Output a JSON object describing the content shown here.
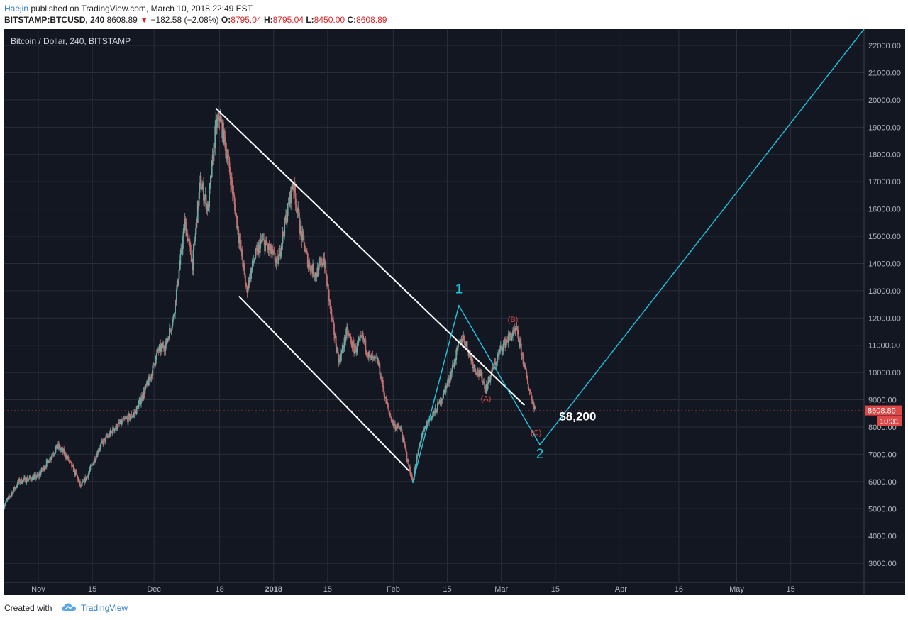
{
  "header": {
    "author": "Haejin",
    "published_text": "published on TradingView.com, March 10, 2018 22:49 EST",
    "symbol": "BITSTAMP:BTCUSD, 240",
    "last": "8608.89",
    "change_arrow": "▼",
    "change": "−182.58 (−2.08%)",
    "open_label": "O:",
    "open": "8795.04",
    "high_label": "H:",
    "high": "8795.04",
    "low_label": "L:",
    "low": "8450.00",
    "close_label": "C:",
    "close": "8608.89"
  },
  "chart_data": {
    "type": "candlestick",
    "title": "Bitcoin / Dollar, 240, BITSTAMP",
    "x_tick_labels": [
      "Nov",
      "15",
      "Dec",
      "18",
      "2018",
      "15",
      "Feb",
      "15",
      "Mar",
      "15",
      "Apr",
      "16",
      "May",
      "15"
    ],
    "x_tick_day_offsets": [
      0,
      14,
      30,
      47,
      61,
      75,
      92,
      106,
      120,
      134,
      151,
      166,
      181,
      195
    ],
    "y_ticks": [
      3000,
      4000,
      5000,
      6000,
      7000,
      8000,
      9000,
      10000,
      11000,
      12000,
      13000,
      14000,
      15000,
      16000,
      17000,
      18000,
      19000,
      20000,
      21000,
      22000
    ],
    "y_tick_labels": [
      "3000.00",
      "4000.00",
      "5000.00",
      "6000.00",
      "7000.00",
      "8000.00",
      "9000.00",
      "10000.00",
      "11000.00",
      "12000.00",
      "13000.00",
      "14000.00",
      "15000.00",
      "16000.00",
      "17000.00",
      "18000.00",
      "19000.00",
      "20000.00",
      "21000.00",
      "22000.00"
    ],
    "ylim": [
      2300,
      22600
    ],
    "xlim_days": [
      -9,
      214
    ],
    "price_path": [
      [
        -9,
        5100
      ],
      [
        -5,
        6000
      ],
      [
        0,
        6200
      ],
      [
        5,
        7300
      ],
      [
        7,
        7000
      ],
      [
        10,
        6200
      ],
      [
        11,
        5800
      ],
      [
        13,
        6300
      ],
      [
        16,
        7300
      ],
      [
        20,
        8000
      ],
      [
        25,
        8500
      ],
      [
        29,
        9800
      ],
      [
        31,
        10800
      ],
      [
        33,
        11000
      ],
      [
        35,
        12000
      ],
      [
        38,
        15500
      ],
      [
        40,
        14000
      ],
      [
        42,
        17000
      ],
      [
        44,
        16000
      ],
      [
        46,
        19000
      ],
      [
        47,
        19400
      ],
      [
        49,
        18000
      ],
      [
        51,
        16000
      ],
      [
        52,
        15000
      ],
      [
        54,
        13000
      ],
      [
        56,
        14200
      ],
      [
        58,
        14800
      ],
      [
        60,
        14500
      ],
      [
        62,
        14000
      ],
      [
        64,
        15500
      ],
      [
        66,
        17000
      ],
      [
        68,
        15200
      ],
      [
        70,
        14000
      ],
      [
        72,
        13600
      ],
      [
        74,
        14200
      ],
      [
        76,
        12000
      ],
      [
        78,
        10400
      ],
      [
        80,
        11500
      ],
      [
        82,
        10800
      ],
      [
        84,
        11300
      ],
      [
        86,
        10500
      ],
      [
        88,
        10400
      ],
      [
        90,
        9000
      ],
      [
        91,
        8500
      ],
      [
        92,
        8100
      ],
      [
        94,
        7900
      ],
      [
        96,
        6600
      ],
      [
        97,
        6000
      ],
      [
        99,
        7500
      ],
      [
        101,
        8200
      ],
      [
        103,
        8600
      ],
      [
        105,
        9200
      ],
      [
        107,
        10000
      ],
      [
        109,
        11000
      ],
      [
        110,
        11300
      ],
      [
        111,
        11000
      ],
      [
        113,
        10200
      ],
      [
        115,
        9800
      ],
      [
        116,
        9400
      ],
      [
        118,
        10200
      ],
      [
        120,
        10900
      ],
      [
        122,
        11300
      ],
      [
        124,
        11500
      ],
      [
        125,
        10900
      ],
      [
        127,
        9500
      ],
      [
        128,
        9000
      ],
      [
        129,
        8600
      ]
    ],
    "last_price": "8608.89",
    "last_price_value": 8608.89,
    "countdown": "10:31",
    "channel_upper": [
      [
        46,
        19700
      ],
      [
        126,
        8800
      ]
    ],
    "channel_lower": [
      [
        52,
        12800
      ],
      [
        96,
        6400
      ]
    ],
    "wave_path": [
      [
        97,
        5950
      ],
      [
        109,
        12450
      ],
      [
        130,
        7350
      ],
      [
        214,
        22600
      ]
    ],
    "wave_labels": [
      {
        "text": "1",
        "x": 109,
        "y": 12900
      },
      {
        "text": "2",
        "x": 130,
        "y": 6850
      }
    ],
    "abc_labels": [
      {
        "text": "(A)",
        "x": 116,
        "y": 8950
      },
      {
        "text": "(B)",
        "x": 123,
        "y": 11850
      },
      {
        "text": "(C)",
        "x": 129,
        "y": 7700
      }
    ],
    "target_label": {
      "text": "$8,200",
      "x": 135,
      "y": 8250
    },
    "colors": {
      "background": "#131722",
      "grid": "#2a2e39",
      "up": "#6fa8a0",
      "down": "#c46d6d",
      "channel": "#ffffff",
      "wave": "#1ec6e0",
      "abc": "#e04848",
      "last_price_bg": "#e04848",
      "axis_text": "#b2b5be"
    }
  },
  "footer": {
    "created_with": "Created with",
    "brand": "TradingView"
  }
}
